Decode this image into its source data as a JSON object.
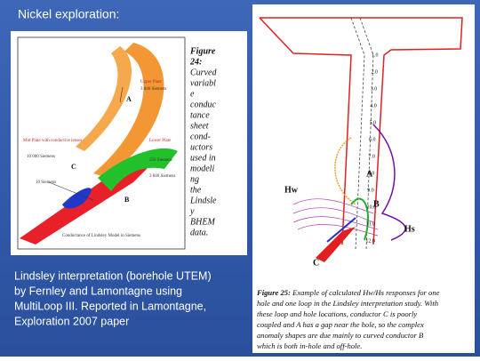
{
  "slide": {
    "title": "Nickel exploration:",
    "body_lines": [
      "Lindsley interpretation (borehole UTEM)",
      "by Fernley and Lamontagne using",
      "MultiLoop III. Reported in Lamontagne,",
      "Exploration 2007 paper"
    ]
  },
  "figure24": {
    "caption_lines": [
      "Figure",
      "24:",
      "Curved",
      "variabl",
      "e",
      "conduc",
      "tance",
      "sheet",
      "cond-",
      "uctors",
      "used in",
      "modeli",
      "ng",
      "the",
      "Lindsle",
      "y",
      "BHEM",
      "data."
    ],
    "labels": {
      "upper_plate": "Upper Plate",
      "upper_siemens": "3 846 Siemens",
      "a": "A",
      "mid_plate": "Mid Plate with conductive lenses",
      "mid_siemens": "10 000 Siemens",
      "c": "C",
      "lens_siemens": "10 Siemens",
      "lower_plate": "Lower Plate",
      "lower_siemens_1": "250 Siemens",
      "lower_siemens_2": "3 846 Siemens",
      "b": "B",
      "footer": "Conductance of Lindsley Model in Siemens"
    }
  },
  "figure25": {
    "labels": {
      "hw": "Hw",
      "hs": "Hs",
      "a": "A",
      "b": "B",
      "c": "C"
    },
    "depth_labels": [
      "1.0",
      "2.0",
      "3.0",
      "4.0",
      "5.0",
      "6.0",
      "7.0",
      "8.0",
      "9.0",
      "10.0",
      "11.0",
      "12.0"
    ],
    "caption_label": "Figure 25:",
    "caption_lines": [
      " Example of calculated Hw/Hs responses for one",
      "hole and one loop in the Lindsley interpretation study. With",
      "these loop and hole locations, conductor C is poorly",
      "coupled and A has a gap near the hole, so the complex",
      "anomaly shapes are due mainly to curved conductor B",
      "which is both in-hole and off-hole."
    ]
  }
}
